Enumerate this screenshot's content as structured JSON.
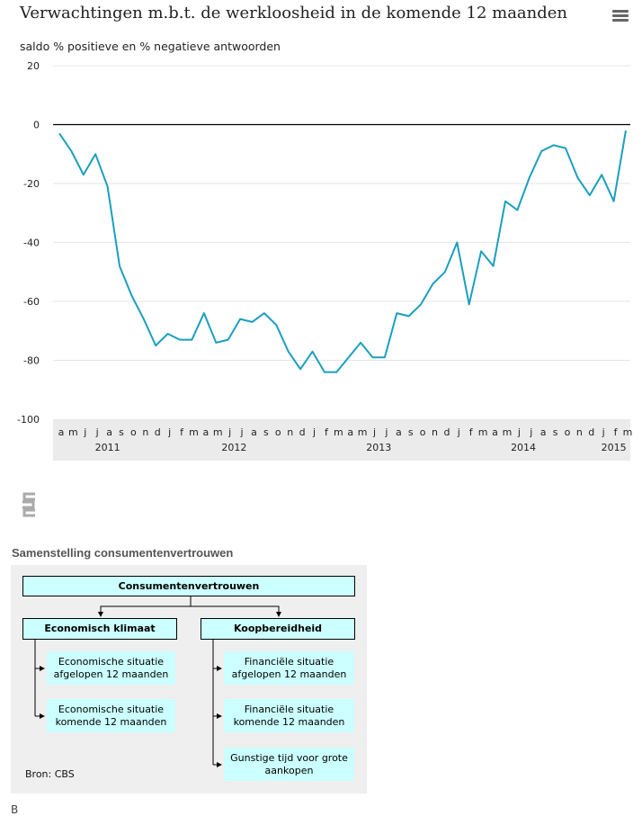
{
  "header": {
    "title": "Verwachtingen m.b.t. de werkloosheid in de komende 12 maanden",
    "menu_icon": "hamburger-menu-icon"
  },
  "chart_data": {
    "type": "line",
    "title": "Verwachtingen m.b.t. de werkloosheid in de komende 12 maanden",
    "ylabel": "saldo % positieve en % negatieve antwoorden",
    "ylim": [
      -100,
      20
    ],
    "yticks": [
      20,
      0,
      -20,
      -40,
      -60,
      -80,
      -100
    ],
    "grid": true,
    "month_labels": [
      "a",
      "m",
      "j",
      "j",
      "a",
      "s",
      "o",
      "n",
      "d",
      "j",
      "f",
      "m",
      "a",
      "m",
      "j",
      "j",
      "a",
      "s",
      "o",
      "n",
      "d",
      "j",
      "f",
      "m",
      "a",
      "m",
      "j",
      "j",
      "a",
      "s",
      "o",
      "n",
      "d",
      "j",
      "f",
      "m",
      "a",
      "m",
      "j",
      "j",
      "a",
      "s",
      "o",
      "n",
      "d",
      "j",
      "f",
      "m"
    ],
    "years": [
      {
        "label": "2011",
        "index": 4
      },
      {
        "label": "2012",
        "index": 14.5
      },
      {
        "label": "2013",
        "index": 26.5
      },
      {
        "label": "2014",
        "index": 38.5
      },
      {
        "label": "2015",
        "index": 46
      }
    ],
    "series": [
      {
        "values": [
          -3,
          -9,
          -17,
          -10,
          -21,
          -48,
          -58,
          -66,
          -75,
          -71,
          -73,
          -73,
          -64,
          -74,
          -73,
          -66,
          -67,
          -64,
          -68,
          -77,
          -83,
          -77,
          -84,
          -84,
          -79,
          -74,
          -79,
          -79,
          -64,
          -65,
          -61,
          -54,
          -50,
          -40,
          -61,
          -43,
          -48,
          -26,
          -29,
          -18,
          -9,
          -7,
          -8,
          -18,
          -24,
          -17,
          -26,
          -2
        ],
        "color": "#1a9fc0"
      }
    ],
    "line_color": "#1a9fc0"
  },
  "logo": {
    "icon": "cbs-logo-icon"
  },
  "diagram": {
    "title": "Samenstelling consumentenvertrouwen",
    "root": "Consumentenvertrouwen",
    "left": {
      "label": "Economisch klimaat",
      "items": [
        "Economische situatie afgelopen 12 maanden",
        "Economische situatie komende 12 maanden"
      ]
    },
    "right": {
      "label": "Koopbereidheid",
      "items": [
        "Financiële situatie afgelopen 12 maanden",
        "Financiële situatie komende 12 maanden",
        "Gunstige tijd voor grote aankopen"
      ]
    },
    "source": "Bron: CBS",
    "box_color": "#ccffff",
    "background": "#efefef"
  },
  "footer": {
    "text": "B"
  }
}
